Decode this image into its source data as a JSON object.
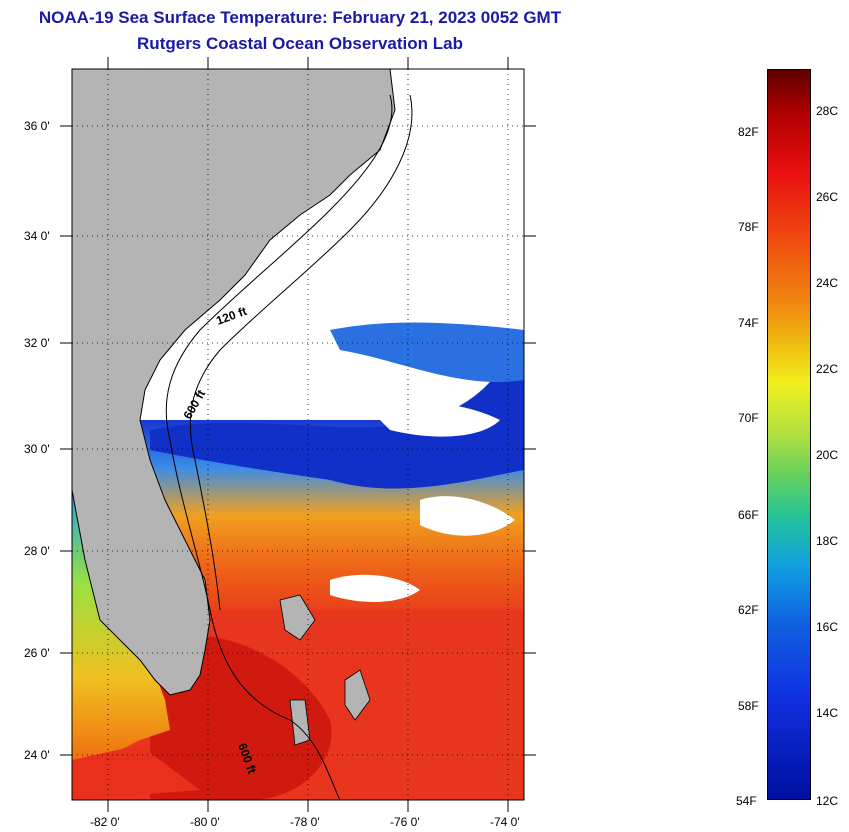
{
  "header": {
    "title": "NOAA-19 Sea Surface Temperature:  February 21, 2023 0052 GMT",
    "subtitle": "Rutgers Coastal Ocean Observation Lab"
  },
  "map": {
    "lat_labels": [
      "36 0'",
      "34 0'",
      "32 0'",
      "30 0'",
      "28 0'",
      "26 0'",
      "24 0'"
    ],
    "lon_labels": [
      "-82 0'",
      "-80 0'",
      "-78 0'",
      "-76 0'",
      "-74 0'"
    ],
    "contour_labels": [
      "120 ft",
      "600 ft",
      "600 ft"
    ],
    "colors": {
      "land": "#b4b4b4",
      "cloud": "#ffffff",
      "warm": "#e8301c",
      "hot": "#d81a10",
      "cool": "#1030d8"
    }
  },
  "colorbar": {
    "fahrenheit_labels": [
      "82F",
      "78F",
      "74F",
      "70F",
      "66F",
      "62F",
      "58F",
      "54F"
    ],
    "celsius_labels": [
      "28C",
      "26C",
      "24C",
      "22C",
      "20C",
      "18C",
      "16C",
      "14C",
      "12C"
    ]
  }
}
